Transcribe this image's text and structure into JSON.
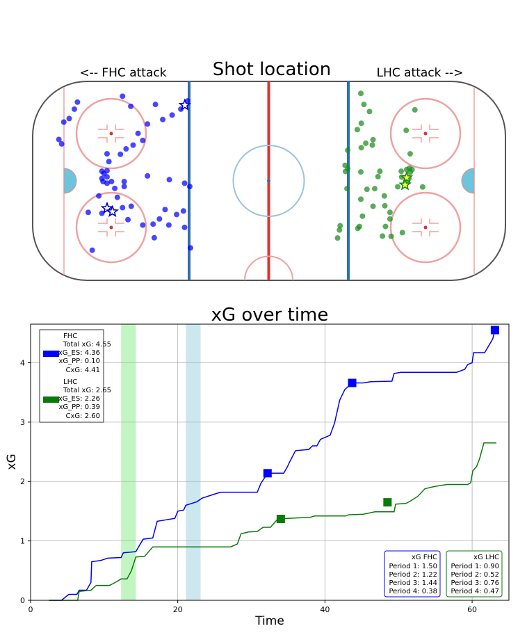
{
  "chart_data": [
    {
      "type": "scatter",
      "title": "Shot location",
      "left_label": "<-- FHC attack",
      "right_label": "LHC attack -->",
      "series": [
        {
          "name": "FHC",
          "color": "#0000ff",
          "points": [
            [
              -81.4,
              33.5
            ],
            [
              -82.7,
              30.5
            ],
            [
              -84.9,
              26.5
            ],
            [
              -87.2,
              25.0
            ],
            [
              -89.3,
              17.6
            ],
            [
              -88.1,
              15.7
            ],
            [
              -62.2,
              36.0
            ],
            [
              -58.7,
              31.7
            ],
            [
              -48.2,
              32.5
            ],
            [
              -45.1,
              26.1
            ],
            [
              -51.6,
              24.2
            ],
            [
              -53.6,
              17.2
            ],
            [
              -55.6,
              20.2
            ],
            [
              -57.7,
              15.2
            ],
            [
              -60.7,
              13.6
            ],
            [
              -63.1,
              11.3
            ],
            [
              -68.8,
              11.5
            ],
            [
              -68.0,
              8.2
            ],
            [
              -68.8,
              4.3
            ],
            [
              -70.1,
              3.1
            ],
            [
              -71.0,
              4.1
            ],
            [
              -68.8,
              1.7
            ],
            [
              -71.0,
              1.0
            ],
            [
              -70.5,
              -0.3
            ],
            [
              -66.9,
              -0.3
            ],
            [
              -68.8,
              -1.0
            ],
            [
              -61.5,
              -0.3
            ],
            [
              -61.5,
              -2.4
            ],
            [
              -51.6,
              2.1
            ],
            [
              -42.3,
              0.5
            ],
            [
              -35.8,
              -1.0
            ],
            [
              -33.6,
              -2.4
            ],
            [
              -65.5,
              -3.2
            ],
            [
              -72.3,
              -6.4
            ],
            [
              -64.4,
              -7.0
            ],
            [
              -58.5,
              -10.8
            ],
            [
              -62.2,
              -11.4
            ],
            [
              -44.1,
              -12.2
            ],
            [
              -46.5,
              -16.2
            ],
            [
              -36.3,
              -12.8
            ],
            [
              -39.2,
              -14.3
            ],
            [
              -42.5,
              -18.8
            ],
            [
              -49.2,
              -18.4
            ],
            [
              -53.6,
              -18.8
            ],
            [
              -59.9,
              -16.5
            ],
            [
              -71.0,
              -13.8
            ],
            [
              -48.7,
              -24.2
            ],
            [
              -35.8,
              -19.8
            ],
            [
              -33.3,
              -28.5
            ],
            [
              -76.8,
              -13.4
            ],
            [
              -75.1,
              -29.5
            ],
            [
              -34.5,
              34.0
            ],
            [
              -37.4,
              30.5
            ],
            [
              -41.1,
              28.0
            ]
          ],
          "goals": [
            [
              -35.7,
              32.2
            ],
            [
              -68.8,
              -11.7
            ],
            [
              -66.5,
              -13.1
            ]
          ]
        },
        {
          "name": "LHC",
          "color": "#1a8a1a",
          "points": [
            [
              39.2,
              37.2
            ],
            [
              40.5,
              32.5
            ],
            [
              42.9,
              29.5
            ],
            [
              39.4,
              24.5
            ],
            [
              37.7,
              21.8
            ],
            [
              41.3,
              16.0
            ],
            [
              39.4,
              14.1
            ],
            [
              44.4,
              17.5
            ],
            [
              44.1,
              15.2
            ],
            [
              33.6,
              13.0
            ],
            [
              32.5,
              6.6
            ],
            [
              33.6,
              5.2
            ],
            [
              32.7,
              4.0
            ],
            [
              39.2,
              3.8
            ],
            [
              46.5,
              1.8
            ],
            [
              47.3,
              4.1
            ],
            [
              56.4,
              4.1
            ],
            [
              58.7,
              4.8
            ],
            [
              59.9,
              5.4
            ],
            [
              61.0,
              4.8
            ],
            [
              60.2,
              3.6
            ],
            [
              59.7,
              1.1
            ],
            [
              58.7,
              -0.7
            ],
            [
              60.2,
              11.5
            ],
            [
              58.5,
              21.5
            ],
            [
              62.2,
              30.2
            ],
            [
              65.5,
              -2.6
            ],
            [
              45.1,
              -3.3
            ],
            [
              41.8,
              -3.6
            ],
            [
              33.3,
              -3.3
            ],
            [
              39.2,
              -7.8
            ],
            [
              49.2,
              -6.4
            ],
            [
              49.4,
              -10.6
            ],
            [
              44.4,
              -10.8
            ],
            [
              39.9,
              -15.0
            ],
            [
              51.6,
              -13.4
            ],
            [
              51.6,
              -16.2
            ],
            [
              38.6,
              -19.4
            ],
            [
              30.4,
              -19.1
            ],
            [
              30.1,
              -20.9
            ],
            [
              29.3,
              -24.3
            ],
            [
              37.9,
              -20.2
            ],
            [
              49.7,
              -19.4
            ],
            [
              52.1,
              -23.6
            ],
            [
              48.4,
              -23.5
            ],
            [
              56.9,
              -22.0
            ],
            [
              54.9,
              -2.5
            ],
            [
              56.6,
              1.6
            ]
          ],
          "goals": [
            [
              58.7,
              1.4
            ],
            [
              58.0,
              -1.7
            ]
          ]
        }
      ]
    },
    {
      "type": "line",
      "title": "xG over time",
      "xlabel": "Time",
      "ylabel": "xG",
      "xlim": [
        0,
        65
      ],
      "ylim": [
        0,
        4.65
      ],
      "x_ticks": [
        "0",
        "20",
        "40",
        "60"
      ],
      "y_ticks": [
        "0",
        "1",
        "2",
        "3",
        "4"
      ],
      "shaded_periods": [
        {
          "from": 12.3,
          "to": 14.3,
          "color": "#c3f5c3"
        },
        {
          "from": 21.1,
          "to": 23.1,
          "color": "#cce7ee"
        }
      ],
      "series": [
        {
          "name": "FHC",
          "color": "#0000ff",
          "points": [
            [
              2.5,
              0
            ],
            [
              4.2,
              0
            ],
            [
              5.2,
              0.1
            ],
            [
              6.3,
              0.1
            ],
            [
              6.6,
              0.17
            ],
            [
              7.6,
              0.17
            ],
            [
              8.2,
              0.3
            ],
            [
              8.3,
              0.65
            ],
            [
              9.5,
              0.67
            ],
            [
              10.5,
              0.71
            ],
            [
              12.3,
              0.72
            ],
            [
              12.6,
              0.8
            ],
            [
              14.3,
              0.82
            ],
            [
              15.3,
              1.03
            ],
            [
              16.6,
              1.05
            ],
            [
              17.2,
              1.33
            ],
            [
              19.6,
              1.38
            ],
            [
              20.0,
              1.5
            ],
            [
              20.8,
              1.52
            ],
            [
              21.1,
              1.6
            ],
            [
              22.6,
              1.66
            ],
            [
              23.3,
              1.72
            ],
            [
              24.8,
              1.78
            ],
            [
              25.8,
              1.82
            ],
            [
              30.8,
              1.82
            ],
            [
              31.3,
              1.97
            ],
            [
              32.2,
              2.14
            ],
            [
              34.4,
              2.14
            ],
            [
              34.9,
              2.25
            ],
            [
              35.2,
              2.33
            ],
            [
              36.0,
              2.52
            ],
            [
              37.8,
              2.54
            ],
            [
              38.3,
              2.6
            ],
            [
              38.9,
              2.6
            ],
            [
              39.4,
              2.71
            ],
            [
              40.7,
              2.78
            ],
            [
              41.3,
              2.98
            ],
            [
              42.0,
              3.37
            ],
            [
              42.7,
              3.55
            ],
            [
              43.7,
              3.66
            ],
            [
              45.2,
              3.66
            ],
            [
              46.2,
              3.68
            ],
            [
              49.1,
              3.69
            ],
            [
              49.4,
              3.82
            ],
            [
              50.3,
              3.84
            ],
            [
              57.9,
              3.84
            ],
            [
              59.0,
              3.89
            ],
            [
              59.4,
              3.97
            ],
            [
              60.0,
              4.0
            ],
            [
              60.2,
              4.17
            ],
            [
              61.7,
              4.17
            ],
            [
              62.8,
              4.4
            ],
            [
              63.1,
              4.55
            ]
          ],
          "markers": [
            [
              32.2,
              2.14
            ],
            [
              43.7,
              3.66
            ],
            [
              63.1,
              4.55
            ]
          ]
        },
        {
          "name": "LHC",
          "color": "#0a7a0a",
          "points": [
            [
              2.5,
              0
            ],
            [
              6.4,
              0
            ],
            [
              6.6,
              0.15
            ],
            [
              8.2,
              0.17
            ],
            [
              8.9,
              0.25
            ],
            [
              10.7,
              0.25
            ],
            [
              11.5,
              0.3
            ],
            [
              12.3,
              0.36
            ],
            [
              13.1,
              0.36
            ],
            [
              13.7,
              0.5
            ],
            [
              14.3,
              0.73
            ],
            [
              15.5,
              0.74
            ],
            [
              16.6,
              0.9
            ],
            [
              27.2,
              0.9
            ],
            [
              28.1,
              0.95
            ],
            [
              28.6,
              1.12
            ],
            [
              29.6,
              1.15
            ],
            [
              30.8,
              1.16
            ],
            [
              31.6,
              1.23
            ],
            [
              32.6,
              1.23
            ],
            [
              33.6,
              1.37
            ],
            [
              36.8,
              1.39
            ],
            [
              37.8,
              1.39
            ],
            [
              38.6,
              1.42
            ],
            [
              42.8,
              1.42
            ],
            [
              43.2,
              1.44
            ],
            [
              45.2,
              1.45
            ],
            [
              46.8,
              1.49
            ],
            [
              49.4,
              1.49
            ],
            [
              49.6,
              1.62
            ],
            [
              51.0,
              1.63
            ],
            [
              51.6,
              1.67
            ],
            [
              52.6,
              1.75
            ],
            [
              53.6,
              1.88
            ],
            [
              55.0,
              1.92
            ],
            [
              56.6,
              1.95
            ],
            [
              59.4,
              1.95
            ],
            [
              59.8,
              1.98
            ],
            [
              60.1,
              2.18
            ],
            [
              60.6,
              2.25
            ],
            [
              61.0,
              2.38
            ],
            [
              61.6,
              2.65
            ],
            [
              63.3,
              2.65
            ]
          ],
          "markers": [
            [
              34.0,
              1.37
            ],
            [
              48.5,
              1.65
            ]
          ]
        }
      ],
      "legend": {
        "position": "top-left",
        "entries": [
          {
            "color": "#0000ff",
            "lines": [
              "FHC",
              "Total xG: 4.55",
              "xG_ES: 4.36",
              "xG_PP: 0.10",
              "CxG: 4.41"
            ]
          },
          {
            "color": "#0a7a0a",
            "lines": [
              "LHC",
              "Total xG: 2.65",
              "xG_ES: 2.26",
              "xG_PP: 0.39",
              "CxG: 2.60"
            ]
          }
        ]
      },
      "period_boxes": [
        {
          "color": "#0000ff",
          "lines": [
            "xG FHC",
            "Period 1: 1.50",
            "Period 2: 1.22",
            "Period 3: 1.44",
            "Period 4: 0.38"
          ]
        },
        {
          "color": "#0a7a0a",
          "lines": [
            "xG LHC",
            "Period 1: 0.90",
            "Period 2: 0.52",
            "Period 3: 0.76",
            "Period 4: 0.47"
          ]
        }
      ]
    }
  ]
}
